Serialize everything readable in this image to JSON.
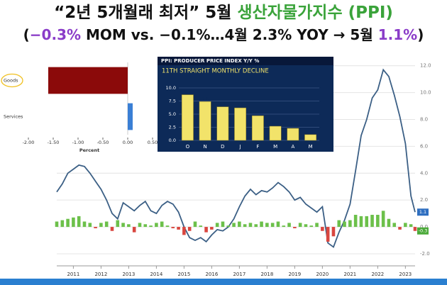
{
  "title": {
    "lines": [
      {
        "segments": [
          {
            "text": "“2년 5개월래 최저” 5월 ",
            "color": "#111111"
          },
          {
            "text": "생산자물가지수 (PPI)",
            "color": "#3aa33a"
          }
        ]
      },
      {
        "segments": [
          {
            "text": "(",
            "color": "#111111"
          },
          {
            "text": "−0.3%",
            "color": "#8a3cc8"
          },
          {
            "text": " MOM vs. −0.1%…4월 2.3% YOY → 5월 ",
            "color": "#111111"
          },
          {
            "text": "1.1%",
            "color": "#8a3cc8"
          },
          {
            "text": ")",
            "color": "#111111"
          }
        ]
      }
    ]
  },
  "chart_data": [
    {
      "type": "line-bar",
      "x": [
        2010.4,
        2010.6,
        2010.8,
        2011.0,
        2011.2,
        2011.4,
        2011.6,
        2011.8,
        2012.0,
        2012.2,
        2012.4,
        2012.6,
        2012.8,
        2013.0,
        2013.2,
        2013.4,
        2013.6,
        2013.8,
        2014.0,
        2014.2,
        2014.4,
        2014.6,
        2014.8,
        2015.0,
        2015.2,
        2015.4,
        2015.6,
        2015.8,
        2016.0,
        2016.2,
        2016.4,
        2016.6,
        2016.8,
        2017.0,
        2017.2,
        2017.4,
        2017.6,
        2017.8,
        2018.0,
        2018.2,
        2018.4,
        2018.6,
        2018.8,
        2019.0,
        2019.2,
        2019.4,
        2019.6,
        2019.8,
        2020.0,
        2020.2,
        2020.4,
        2020.6,
        2020.8,
        2021.0,
        2021.2,
        2021.4,
        2021.6,
        2021.8,
        2022.0,
        2022.2,
        2022.4,
        2022.6,
        2022.8,
        2023.0,
        2023.2,
        2023.35
      ],
      "series": [
        {
          "type": "line",
          "color": "#3b5f85",
          "label_color": "#2f6fc0",
          "values": [
            2.6,
            3.2,
            4.0,
            4.3,
            4.6,
            4.5,
            4.0,
            3.4,
            2.8,
            2.0,
            1.0,
            0.6,
            1.8,
            1.5,
            1.2,
            1.6,
            1.9,
            1.2,
            1.0,
            1.6,
            1.9,
            1.7,
            1.1,
            0.0,
            -0.8,
            -1.0,
            -0.8,
            -1.1,
            -0.6,
            -0.2,
            -0.3,
            0.0,
            0.6,
            1.5,
            2.3,
            2.8,
            2.4,
            2.7,
            2.6,
            2.9,
            3.3,
            3.0,
            2.6,
            2.0,
            2.2,
            1.7,
            1.4,
            1.1,
            1.5,
            -1.2,
            -1.5,
            -0.4,
            0.5,
            1.7,
            4.2,
            6.8,
            8.0,
            9.6,
            10.2,
            11.7,
            11.2,
            9.8,
            8.2,
            6.2,
            2.3,
            1.1
          ]
        },
        {
          "type": "bar",
          "color": "#6cc04a",
          "negative_color": "#d9463f",
          "label_color": "#4caa3a",
          "values": [
            0.4,
            0.5,
            0.6,
            0.7,
            0.8,
            0.4,
            0.3,
            -0.1,
            0.3,
            0.4,
            -0.3,
            0.5,
            0.3,
            0.2,
            -0.4,
            0.3,
            0.2,
            0.1,
            0.3,
            0.4,
            0.1,
            -0.1,
            -0.2,
            -0.6,
            -0.3,
            0.4,
            0.1,
            -0.4,
            -0.2,
            0.3,
            0.4,
            0.1,
            0.3,
            0.4,
            0.2,
            0.3,
            0.2,
            0.4,
            0.3,
            0.3,
            0.4,
            0.1,
            0.3,
            -0.1,
            0.3,
            0.2,
            0.1,
            0.3,
            -0.3,
            -1.1,
            -0.7,
            0.5,
            0.4,
            0.5,
            0.9,
            0.8,
            0.8,
            0.9,
            0.9,
            1.2,
            0.6,
            0.3,
            -0.2,
            0.3,
            0.2,
            -0.3
          ]
        }
      ],
      "xlim": [
        2010.4,
        2023.35
      ],
      "xticks": [
        2011,
        2012,
        2013,
        2014,
        2015,
        2016,
        2017,
        2018,
        2019,
        2020,
        2021,
        2022,
        2023
      ],
      "ylim": [
        -2.9,
        13.2
      ],
      "yticks": [
        {
          "value": -2,
          "label": "-2.0"
        },
        {
          "value": 0,
          "label": "0.0"
        },
        {
          "value": 2,
          "label": "2.0"
        },
        {
          "value": 4,
          "label": "4.0"
        },
        {
          "value": 6,
          "label": "6.0"
        },
        {
          "value": 8,
          "label": "8.0"
        },
        {
          "value": 10,
          "label": "10.0"
        },
        {
          "value": 12,
          "label": "12.0"
        }
      ]
    },
    {
      "type": "hbar",
      "categories": [
        "Goods",
        "Services"
      ],
      "values": [
        -1.6,
        0.1
      ],
      "colors": [
        "#8b0a0a",
        "#3a7fd5"
      ],
      "xlim": [
        -2,
        0.5
      ],
      "xticks": [
        {
          "value": -2,
          "label": "-2.00"
        },
        {
          "value": -1.5,
          "label": "-1.50"
        },
        {
          "value": -1,
          "label": "-1.00"
        },
        {
          "value": -0.5,
          "label": "-0.50"
        },
        {
          "value": 0,
          "label": "0.00"
        },
        {
          "value": 0.5,
          "label": "0.50"
        }
      ],
      "xlabel": "Percent"
    },
    {
      "type": "bar",
      "title": "PPI: PRODUCER PRICE INDEX Y/Y %",
      "subtitle": "11TH STRAIGHT MONTHLY DECLINE",
      "categories": [
        "O",
        "N",
        "D",
        "J",
        "F",
        "M",
        "A",
        "M"
      ],
      "values": [
        8.7,
        7.4,
        6.4,
        6.2,
        4.7,
        2.7,
        2.3,
        1.1
      ],
      "color": "#f2e36a",
      "ylim": [
        0,
        10
      ],
      "yticks": [
        {
          "value": 0,
          "label": "0.0"
        },
        {
          "value": 2.5,
          "label": "2.5"
        },
        {
          "value": 5,
          "label": "5.0"
        },
        {
          "value": 7.5,
          "label": "7.5"
        },
        {
          "value": 10,
          "label": "10.0"
        }
      ]
    }
  ]
}
